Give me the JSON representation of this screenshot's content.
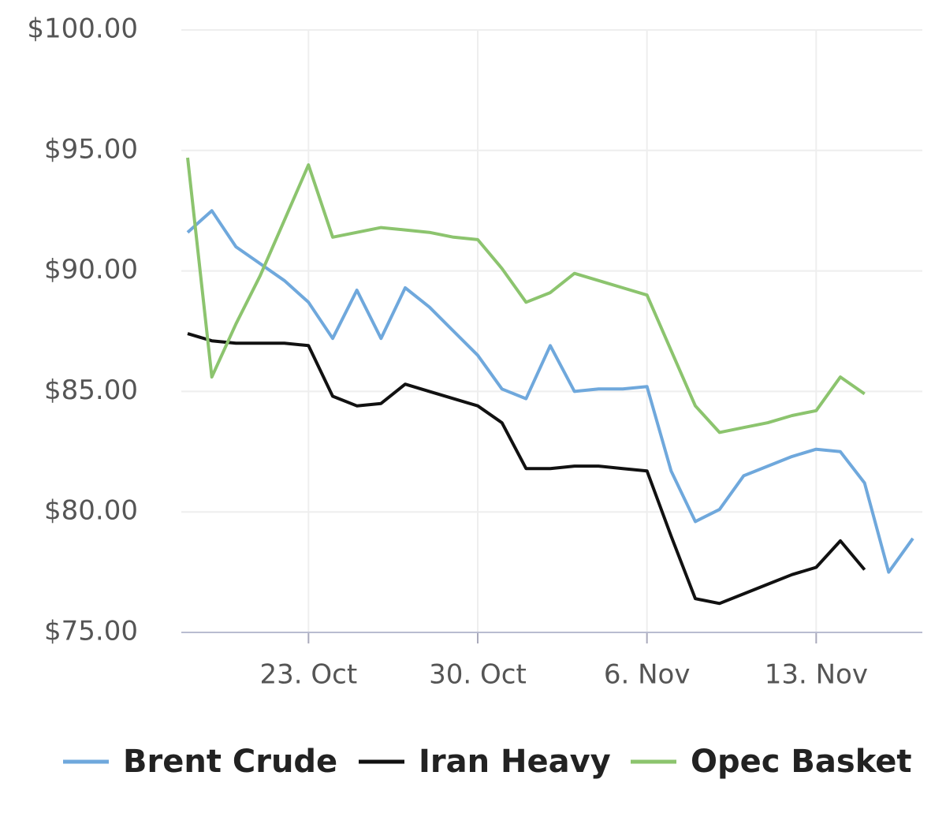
{
  "chart_data": {
    "type": "line",
    "x": [
      "18. Oct",
      "19. Oct",
      "20. Oct",
      "21. Oct",
      "22. Oct",
      "23. Oct",
      "24. Oct",
      "25. Oct",
      "26. Oct",
      "27. Oct",
      "28. Oct",
      "29. Oct",
      "30. Oct",
      "31. Oct",
      "1. Nov",
      "2. Nov",
      "3. Nov",
      "4. Nov",
      "5. Nov",
      "6. Nov",
      "7. Nov",
      "8. Nov",
      "9. Nov",
      "10. Nov",
      "11. Nov",
      "12. Nov",
      "13. Nov",
      "14. Nov",
      "15. Nov",
      "16. Nov",
      "17. Nov"
    ],
    "series": [
      {
        "name": "Brent Crude",
        "color": "#6fa8dc",
        "values": [
          91.6,
          92.5,
          91.0,
          90.3,
          89.6,
          88.7,
          87.2,
          89.2,
          87.2,
          89.3,
          88.5,
          87.5,
          86.5,
          85.1,
          84.7,
          86.9,
          85.0,
          85.1,
          85.1,
          85.2,
          81.7,
          79.6,
          80.1,
          81.5,
          81.9,
          82.3,
          82.6,
          82.5,
          81.2,
          77.5,
          78.9
        ]
      },
      {
        "name": "Iran Heavy",
        "color": "#111111",
        "values": [
          87.4,
          87.1,
          87.0,
          87.0,
          87.0,
          86.9,
          84.8,
          84.4,
          84.5,
          85.3,
          85.0,
          84.7,
          84.4,
          83.7,
          81.8,
          81.8,
          81.9,
          81.9,
          81.8,
          81.7,
          79.0,
          76.4,
          76.2,
          76.6,
          77.0,
          77.4,
          77.7,
          78.8,
          77.6,
          null,
          null
        ]
      },
      {
        "name": "Opec Basket",
        "color": "#8cc46e",
        "values": [
          94.7,
          85.6,
          87.8,
          89.8,
          92.1,
          94.4,
          91.4,
          91.6,
          91.8,
          91.7,
          91.6,
          91.4,
          91.3,
          90.1,
          88.7,
          89.1,
          89.9,
          89.6,
          89.3,
          89.0,
          86.7,
          84.4,
          83.3,
          83.5,
          83.7,
          84.0,
          84.2,
          85.6,
          84.9,
          null,
          null
        ]
      }
    ],
    "xticks": [
      "23. Oct",
      "30. Oct",
      "6. Nov",
      "13. Nov"
    ],
    "ylim": [
      75,
      100
    ],
    "yticks": [
      {
        "value": 75,
        "label": "$75.00"
      },
      {
        "value": 80,
        "label": "$80.00"
      },
      {
        "value": 85,
        "label": "$85.00"
      },
      {
        "value": 90,
        "label": "$90.00"
      },
      {
        "value": 95,
        "label": "$95.00"
      },
      {
        "value": 100,
        "label": "$100.00"
      }
    ],
    "grid": true,
    "legend": "bottom"
  }
}
